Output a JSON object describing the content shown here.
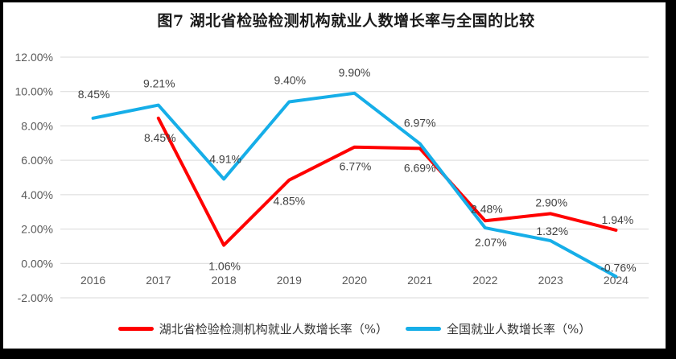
{
  "title": "图7 湖北省检验检测机构就业人数增长率与全国的比较",
  "frame_color": "#000000",
  "chart_data": {
    "type": "line",
    "title": "图7 湖北省检验检测机构就业人数增长率与全国的比较",
    "categories": [
      "2016",
      "2017",
      "2018",
      "2019",
      "2020",
      "2021",
      "2022",
      "2023",
      "2024"
    ],
    "series": [
      {
        "key": "hubei",
        "name": "湖北省检验检测机构就业人数增长率（%）",
        "color": "#FF0000",
        "values": [
          null,
          8.45,
          1.06,
          4.85,
          6.77,
          6.69,
          2.48,
          2.9,
          1.94
        ],
        "labels": [
          null,
          "8.45%",
          "1.06%",
          "4.85%",
          "6.77%",
          "6.69%",
          "2.48%",
          "2.90%",
          "1.94%"
        ],
        "label_offsets": [
          null,
          [
            2,
            24
          ],
          [
            1,
            26
          ],
          [
            0,
            26
          ],
          [
            1,
            24
          ],
          [
            0,
            24
          ],
          [
            2,
            -15
          ],
          [
            1,
            -14
          ],
          [
            2,
            -13
          ]
        ]
      },
      {
        "key": "national",
        "name": "全国就业人数增长率（%）",
        "color": "#16AEE8",
        "values": [
          8.45,
          9.21,
          4.91,
          9.4,
          9.9,
          6.97,
          2.07,
          1.32,
          -0.76
        ],
        "labels": [
          "8.45%",
          "9.21%",
          "4.91%",
          "9.40%",
          "9.90%",
          "6.97%",
          "2.07%",
          "1.32%",
          "-0.76%"
        ],
        "label_offsets": [
          [
            1,
            -30
          ],
          [
            1,
            -27
          ],
          [
            2,
            -25
          ],
          [
            1,
            -27
          ],
          [
            0,
            -26
          ],
          [
            0,
            -26
          ],
          [
            7,
            18
          ],
          [
            2,
            -12
          ],
          [
            3,
            -11
          ]
        ]
      }
    ],
    "y_axis": {
      "range": [
        -2,
        12
      ],
      "step": 2,
      "format": "percent",
      "ticks": [
        {
          "value": 12,
          "label": "12.00%"
        },
        {
          "value": 10,
          "label": "10.00%"
        },
        {
          "value": 8,
          "label": "8.00%"
        },
        {
          "value": 6,
          "label": "6.00%"
        },
        {
          "value": 4,
          "label": "4.00%"
        },
        {
          "value": 2,
          "label": "2.00%"
        },
        {
          "value": 0,
          "label": "0.00%"
        },
        {
          "value": -2,
          "label": "-2.00%"
        }
      ]
    },
    "grid": true,
    "grid_color": "#D9D9D9",
    "axis_text_color": "#595959",
    "label_text_color": "#404040",
    "legend_position": "bottom"
  }
}
